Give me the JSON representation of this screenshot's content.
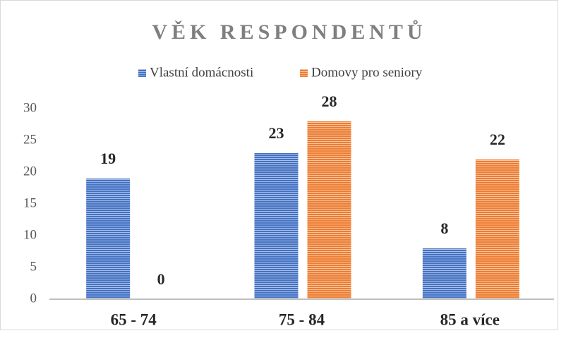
{
  "chart_data": {
    "type": "bar",
    "title": "VĚK RESPONDENTŮ",
    "categories": [
      "65 - 74",
      "75 - 84",
      "85 a více"
    ],
    "series": [
      {
        "name": "Vlastní domácnosti",
        "color": "#4472c4",
        "values": [
          19,
          23,
          8
        ]
      },
      {
        "name": "Domovy pro seniory",
        "color": "#ed7d31",
        "values": [
          0,
          28,
          22
        ]
      }
    ],
    "ylim": [
      0,
      30
    ],
    "yticks": [
      0,
      5,
      10,
      15,
      20,
      25,
      30
    ],
    "grid": false,
    "legend": "top"
  }
}
